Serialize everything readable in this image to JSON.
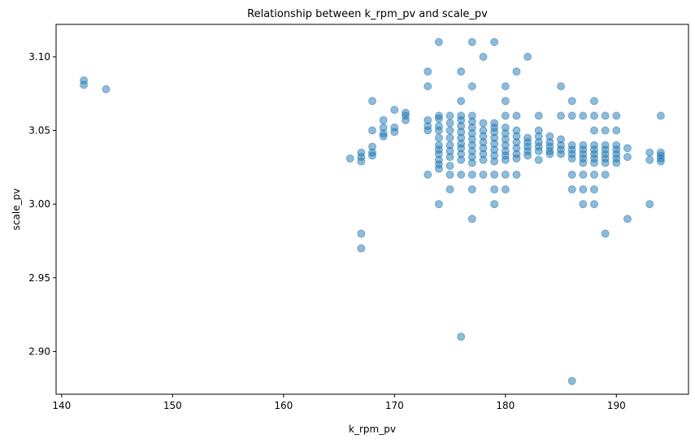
{
  "chart_data": {
    "type": "scatter",
    "title": "Relationship between k_rpm_pv and scale_pv",
    "xlabel": "k_rpm_pv",
    "ylabel": "scale_pv",
    "xlim": [
      139.5,
      196.5
    ],
    "ylim": [
      2.871,
      3.122
    ],
    "xticks": [
      140,
      150,
      160,
      170,
      180,
      190
    ],
    "yticks": [
      2.9,
      2.95,
      3.0,
      3.05,
      3.1
    ],
    "xtick_labels": [
      "140",
      "150",
      "160",
      "170",
      "180",
      "190"
    ],
    "ytick_labels": [
      "2.90",
      "2.95",
      "3.00",
      "3.05",
      "3.10"
    ],
    "grid": false,
    "marker_color": "#1f77b4",
    "marker_alpha": 0.5,
    "points": [
      [
        142,
        3.084
      ],
      [
        142,
        3.081
      ],
      [
        144,
        3.078
      ],
      [
        166,
        3.031
      ],
      [
        167,
        3.035
      ],
      [
        167,
        3.032
      ],
      [
        167,
        3.029
      ],
      [
        167,
        2.98
      ],
      [
        167,
        2.97
      ],
      [
        168,
        3.07
      ],
      [
        168,
        3.05
      ],
      [
        168,
        3.039
      ],
      [
        168,
        3.035
      ],
      [
        168,
        3.033
      ],
      [
        169,
        3.057
      ],
      [
        169,
        3.052
      ],
      [
        169,
        3.048
      ],
      [
        169,
        3.046
      ],
      [
        170,
        3.064
      ],
      [
        170,
        3.052
      ],
      [
        170,
        3.049
      ],
      [
        171,
        3.062
      ],
      [
        171,
        3.06
      ],
      [
        171,
        3.057
      ],
      [
        173,
        3.09
      ],
      [
        173,
        3.08
      ],
      [
        173,
        3.057
      ],
      [
        173,
        3.053
      ],
      [
        173,
        3.05
      ],
      [
        173,
        3.02
      ],
      [
        174,
        3.11
      ],
      [
        174,
        3.06
      ],
      [
        174,
        3.058
      ],
      [
        174,
        3.053
      ],
      [
        174,
        3.05
      ],
      [
        174,
        3.045
      ],
      [
        174,
        3.04
      ],
      [
        174,
        3.037
      ],
      [
        174,
        3.034
      ],
      [
        174,
        3.03
      ],
      [
        174,
        3.027
      ],
      [
        174,
        3.024
      ],
      [
        174,
        3.0
      ],
      [
        175,
        3.06
      ],
      [
        175,
        3.055
      ],
      [
        175,
        3.05
      ],
      [
        175,
        3.045
      ],
      [
        175,
        3.04
      ],
      [
        175,
        3.036
      ],
      [
        175,
        3.032
      ],
      [
        175,
        3.026
      ],
      [
        175,
        3.02
      ],
      [
        175,
        3.01
      ],
      [
        176,
        3.09
      ],
      [
        176,
        3.07
      ],
      [
        176,
        3.06
      ],
      [
        176,
        3.057
      ],
      [
        176,
        3.053
      ],
      [
        176,
        3.049
      ],
      [
        176,
        3.045
      ],
      [
        176,
        3.041
      ],
      [
        176,
        3.038
      ],
      [
        176,
        3.034
      ],
      [
        176,
        3.03
      ],
      [
        176,
        3.02
      ],
      [
        176,
        2.91
      ],
      [
        177,
        3.11
      ],
      [
        177,
        3.08
      ],
      [
        177,
        3.06
      ],
      [
        177,
        3.056
      ],
      [
        177,
        3.052
      ],
      [
        177,
        3.048
      ],
      [
        177,
        3.044
      ],
      [
        177,
        3.04
      ],
      [
        177,
        3.036
      ],
      [
        177,
        3.032
      ],
      [
        177,
        3.028
      ],
      [
        177,
        3.02
      ],
      [
        177,
        3.01
      ],
      [
        177,
        2.99
      ],
      [
        178,
        3.1
      ],
      [
        178,
        3.055
      ],
      [
        178,
        3.05
      ],
      [
        178,
        3.046
      ],
      [
        178,
        3.042
      ],
      [
        178,
        3.038
      ],
      [
        178,
        3.034
      ],
      [
        178,
        3.03
      ],
      [
        178,
        3.02
      ],
      [
        179,
        3.11
      ],
      [
        179,
        3.055
      ],
      [
        179,
        3.052
      ],
      [
        179,
        3.049
      ],
      [
        179,
        3.045
      ],
      [
        179,
        3.041
      ],
      [
        179,
        3.037
      ],
      [
        179,
        3.033
      ],
      [
        179,
        3.029
      ],
      [
        179,
        3.02
      ],
      [
        179,
        3.01
      ],
      [
        179,
        3.0
      ],
      [
        180,
        3.08
      ],
      [
        180,
        3.07
      ],
      [
        180,
        3.06
      ],
      [
        180,
        3.052
      ],
      [
        180,
        3.048
      ],
      [
        180,
        3.044
      ],
      [
        180,
        3.04
      ],
      [
        180,
        3.036
      ],
      [
        180,
        3.033
      ],
      [
        180,
        3.03
      ],
      [
        180,
        3.02
      ],
      [
        180,
        3.01
      ],
      [
        181,
        3.09
      ],
      [
        181,
        3.06
      ],
      [
        181,
        3.05
      ],
      [
        181,
        3.046
      ],
      [
        181,
        3.042
      ],
      [
        181,
        3.038
      ],
      [
        181,
        3.034
      ],
      [
        181,
        3.031
      ],
      [
        181,
        3.02
      ],
      [
        182,
        3.1
      ],
      [
        182,
        3.045
      ],
      [
        182,
        3.042
      ],
      [
        182,
        3.039
      ],
      [
        182,
        3.036
      ],
      [
        182,
        3.033
      ],
      [
        183,
        3.06
      ],
      [
        183,
        3.05
      ],
      [
        183,
        3.046
      ],
      [
        183,
        3.042
      ],
      [
        183,
        3.039
      ],
      [
        183,
        3.036
      ],
      [
        183,
        3.03
      ],
      [
        184,
        3.046
      ],
      [
        184,
        3.042
      ],
      [
        184,
        3.039
      ],
      [
        184,
        3.036
      ],
      [
        184,
        3.034
      ],
      [
        185,
        3.08
      ],
      [
        185,
        3.06
      ],
      [
        185,
        3.044
      ],
      [
        185,
        3.04
      ],
      [
        185,
        3.037
      ],
      [
        185,
        3.034
      ],
      [
        186,
        3.07
      ],
      [
        186,
        3.06
      ],
      [
        186,
        3.04
      ],
      [
        186,
        3.037
      ],
      [
        186,
        3.034
      ],
      [
        186,
        3.031
      ],
      [
        186,
        3.02
      ],
      [
        186,
        3.01
      ],
      [
        186,
        2.88
      ],
      [
        187,
        3.06
      ],
      [
        187,
        3.04
      ],
      [
        187,
        3.037
      ],
      [
        187,
        3.034
      ],
      [
        187,
        3.031
      ],
      [
        187,
        3.028
      ],
      [
        187,
        3.02
      ],
      [
        187,
        3.01
      ],
      [
        187,
        3.0
      ],
      [
        188,
        3.07
      ],
      [
        188,
        3.06
      ],
      [
        188,
        3.05
      ],
      [
        188,
        3.04
      ],
      [
        188,
        3.037
      ],
      [
        188,
        3.034
      ],
      [
        188,
        3.031
      ],
      [
        188,
        3.028
      ],
      [
        188,
        3.02
      ],
      [
        188,
        3.01
      ],
      [
        188,
        3.0
      ],
      [
        189,
        3.06
      ],
      [
        189,
        3.05
      ],
      [
        189,
        3.04
      ],
      [
        189,
        3.037
      ],
      [
        189,
        3.034
      ],
      [
        189,
        3.031
      ],
      [
        189,
        3.028
      ],
      [
        189,
        3.02
      ],
      [
        189,
        2.98
      ],
      [
        190,
        3.06
      ],
      [
        190,
        3.05
      ],
      [
        190,
        3.04
      ],
      [
        190,
        3.037
      ],
      [
        190,
        3.034
      ],
      [
        190,
        3.031
      ],
      [
        190,
        3.028
      ],
      [
        191,
        3.038
      ],
      [
        191,
        3.032
      ],
      [
        191,
        2.99
      ],
      [
        193,
        3.035
      ],
      [
        193,
        3.03
      ],
      [
        193,
        3.0
      ],
      [
        194,
        3.06
      ],
      [
        194,
        3.035
      ],
      [
        194,
        3.033
      ],
      [
        194,
        3.031
      ],
      [
        194,
        3.029
      ]
    ]
  }
}
